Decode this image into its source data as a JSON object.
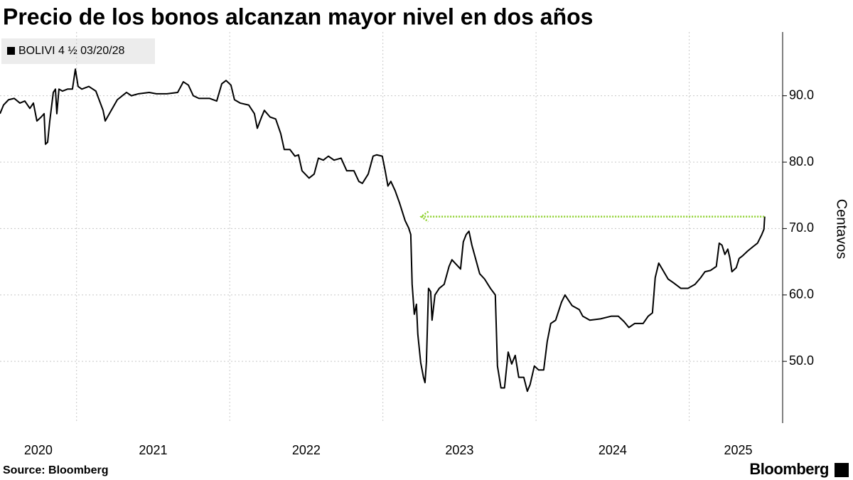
{
  "chart_data": {
    "type": "line",
    "title": "Precio de los bonos alcanzan mayor nivel en dos años",
    "y_label": "Centavos",
    "source": "Source:  Bloomberg",
    "brand": "Bloomberg",
    "xlim": [
      2020.5,
      2025.61
    ],
    "xticks": [
      {
        "value": 2020.75,
        "label": "2020"
      },
      {
        "value": 2021.5,
        "label": "2021"
      },
      {
        "value": 2022.5,
        "label": "2022"
      },
      {
        "value": 2023.5,
        "label": "2023"
      },
      {
        "value": 2024.5,
        "label": "2024"
      },
      {
        "value": 2025.32,
        "label": "2025"
      }
    ],
    "xgrid": [
      2021,
      2022,
      2023,
      2024,
      2025
    ],
    "ylim": [
      40.7,
      99.6
    ],
    "yticks": [
      {
        "value": 50,
        "label": "50.0"
      },
      {
        "value": 60,
        "label": "60.0"
      },
      {
        "value": 70,
        "label": "70.0"
      },
      {
        "value": 80,
        "label": "80.0"
      },
      {
        "value": 90,
        "label": "90.0"
      }
    ],
    "grid": true,
    "reference_arrow": {
      "value": 71.8,
      "x": [
        2023.25,
        2025.49
      ],
      "color": "#8fd12e"
    },
    "series": [
      {
        "name": "BOLIVI 4 ½ 03/20/28",
        "color": "#000000",
        "x": [
          2020.5,
          2020.523,
          2020.556,
          2020.593,
          2020.63,
          2020.662,
          2020.695,
          2020.718,
          2020.741,
          2020.769,
          2020.788,
          2020.797,
          2020.811,
          2020.825,
          2020.848,
          2020.862,
          2020.871,
          2020.885,
          2020.908,
          2020.941,
          2020.973,
          2020.992,
          2021.01,
          2021.034,
          2021.08,
          2021.126,
          2021.173,
          2021.187,
          2021.219,
          2021.266,
          2021.326,
          2021.358,
          2021.405,
          2021.474,
          2021.521,
          2021.59,
          2021.66,
          2021.697,
          2021.73,
          2021.762,
          2021.799,
          2021.869,
          2021.915,
          2021.948,
          2021.976,
          2022.008,
          2022.031,
          2022.068,
          2022.124,
          2022.161,
          2022.18,
          2022.208,
          2022.226,
          2022.263,
          2022.3,
          2022.333,
          2022.356,
          2022.393,
          2022.426,
          2022.449,
          2022.472,
          2022.518,
          2022.551,
          2022.579,
          2022.611,
          2022.644,
          2022.681,
          2022.727,
          2022.764,
          2022.811,
          2022.843,
          2022.866,
          2022.904,
          2022.936,
          2022.959,
          2022.996,
          2023.015,
          2023.033,
          2023.052,
          2023.08,
          2023.108,
          2023.145,
          2023.168,
          2023.182,
          2023.191,
          2023.205,
          2023.219,
          2023.228,
          2023.247,
          2023.265,
          2023.275,
          2023.284,
          2023.298,
          2023.312,
          2023.321,
          2023.34,
          2023.368,
          2023.4,
          2023.432,
          2023.451,
          2023.479,
          2023.507,
          2023.525,
          2023.544,
          2023.562,
          2023.581,
          2023.6,
          2023.632,
          2023.664,
          2023.702,
          2023.734,
          2023.748,
          2023.771,
          2023.794,
          2023.818,
          2023.841,
          2023.864,
          2023.887,
          2023.92,
          2023.943,
          2023.961,
          2023.989,
          2024.017,
          2024.05,
          2024.073,
          2024.096,
          2024.128,
          2024.166,
          2024.189,
          2024.235,
          2024.282,
          2024.305,
          2024.351,
          2024.421,
          2024.49,
          2024.537,
          2024.574,
          2024.606,
          2024.644,
          2024.699,
          2024.732,
          2024.76,
          2024.778,
          2024.801,
          2024.824,
          2024.862,
          2024.899,
          2024.945,
          2024.992,
          2025.038,
          2025.075,
          2025.103,
          2025.14,
          2025.177,
          2025.196,
          2025.214,
          2025.233,
          2025.252,
          2025.265,
          2025.279,
          2025.307,
          2025.326,
          2025.349,
          2025.381,
          2025.418,
          2025.446,
          2025.474,
          2025.488,
          2025.493
        ],
        "values": [
          87.3,
          88.6,
          89.4,
          89.6,
          88.9,
          89.2,
          88.1,
          88.9,
          86.2,
          86.8,
          87.3,
          82.7,
          83.0,
          86.2,
          90.5,
          91.0,
          87.3,
          91.0,
          90.7,
          91.0,
          91.0,
          94.0,
          91.4,
          91.0,
          91.4,
          90.7,
          87.8,
          86.2,
          87.5,
          89.4,
          90.5,
          90.0,
          90.3,
          90.5,
          90.3,
          90.3,
          90.5,
          92.1,
          91.6,
          90.0,
          89.6,
          89.6,
          89.2,
          91.8,
          92.3,
          91.6,
          89.4,
          88.9,
          88.6,
          87.3,
          85.1,
          86.8,
          87.8,
          86.8,
          86.5,
          84.3,
          81.9,
          81.9,
          80.9,
          81.1,
          78.7,
          77.6,
          78.2,
          80.6,
          80.3,
          80.9,
          80.3,
          80.6,
          78.7,
          78.7,
          77.1,
          76.8,
          78.2,
          80.9,
          81.1,
          80.9,
          78.7,
          76.4,
          77.1,
          75.7,
          73.9,
          71.2,
          70.1,
          69.1,
          61.6,
          57.1,
          58.6,
          54.1,
          49.8,
          47.6,
          46.8,
          49.8,
          61.0,
          60.5,
          56.2,
          60.0,
          61.0,
          61.6,
          64.3,
          65.3,
          64.6,
          63.9,
          68.0,
          69.1,
          69.6,
          67.5,
          65.9,
          63.2,
          62.4,
          61.0,
          60.0,
          49.3,
          46.0,
          46.0,
          51.4,
          49.6,
          50.9,
          47.6,
          47.6,
          45.5,
          46.5,
          49.3,
          48.7,
          48.7,
          53.0,
          55.7,
          56.2,
          58.9,
          60.0,
          58.4,
          57.8,
          56.8,
          56.2,
          56.4,
          56.8,
          56.8,
          56.0,
          55.1,
          55.7,
          55.7,
          56.8,
          57.3,
          62.6,
          64.8,
          63.9,
          62.4,
          61.8,
          61.0,
          61.0,
          61.6,
          62.6,
          63.5,
          63.7,
          64.3,
          67.8,
          67.5,
          66.1,
          66.9,
          65.6,
          63.5,
          64.1,
          65.5,
          65.9,
          66.6,
          67.3,
          67.8,
          69.1,
          69.9,
          71.8
        ]
      }
    ]
  }
}
